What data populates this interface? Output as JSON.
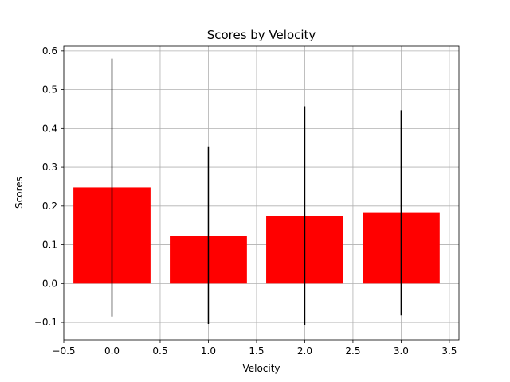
{
  "chart_data": {
    "type": "bar",
    "title": "Scores by Velocity",
    "xlabel": "Velocity",
    "ylabel": "Scores",
    "x": [
      0,
      1,
      2,
      3
    ],
    "values": [
      0.248,
      0.123,
      0.174,
      0.182
    ],
    "error_lower": [
      -0.085,
      -0.104,
      -0.108,
      -0.082
    ],
    "error_upper": [
      0.58,
      0.352,
      0.457,
      0.447
    ],
    "bar_width": 0.8,
    "xlim": [
      -0.5,
      3.6
    ],
    "ylim": [
      -0.145,
      0.612
    ],
    "xticks": [
      -0.5,
      0.0,
      0.5,
      1.0,
      1.5,
      2.0,
      2.5,
      3.0,
      3.5
    ],
    "xtick_labels": [
      "−0.5",
      "0.0",
      "0.5",
      "1.0",
      "1.5",
      "2.0",
      "2.5",
      "3.0",
      "3.5"
    ],
    "yticks": [
      -0.1,
      0.0,
      0.1,
      0.2,
      0.3,
      0.4,
      0.5,
      0.6
    ],
    "ytick_labels": [
      "−0.1",
      "0.0",
      "0.1",
      "0.2",
      "0.3",
      "0.4",
      "0.5",
      "0.6"
    ],
    "grid": true,
    "colors": {
      "bar": "#ff0000",
      "error": "#000000"
    }
  }
}
